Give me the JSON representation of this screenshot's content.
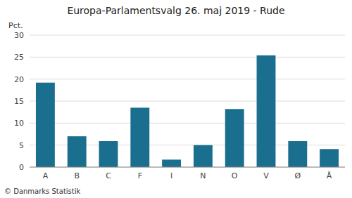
{
  "chart_data": {
    "type": "bar",
    "title": "Europa-Parlamentsvalg 26. maj 2019 - Rude",
    "categories": [
      "A",
      "B",
      "C",
      "F",
      "I",
      "N",
      "O",
      "V",
      "Ø",
      "Å"
    ],
    "values": [
      19.2,
      7.0,
      5.9,
      13.5,
      1.7,
      5.0,
      13.2,
      25.4,
      5.9,
      4.1
    ],
    "color": "#1a6e8e",
    "ylabel": "Pct.",
    "footer": "© Danmarks Statistik",
    "ylim": [
      0,
      30
    ],
    "yticks": [
      0,
      5,
      10,
      15,
      20,
      25,
      30
    ],
    "grid": true
  }
}
